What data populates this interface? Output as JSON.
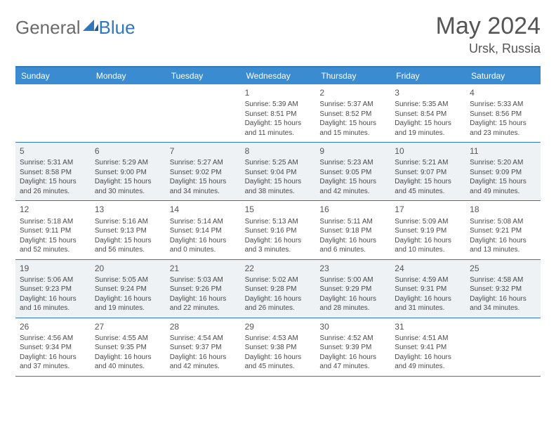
{
  "logo": {
    "part1": "General",
    "part2": "Blue"
  },
  "title": "May 2024",
  "location": "Ursk, Russia",
  "colors": {
    "header_bg": "#3a8bd0",
    "border": "#2f78bd",
    "shade": "#eef2f5",
    "text": "#4a4a4a"
  },
  "day_headers": [
    "Sunday",
    "Monday",
    "Tuesday",
    "Wednesday",
    "Thursday",
    "Friday",
    "Saturday"
  ],
  "weeks": [
    [
      {
        "blank": true
      },
      {
        "blank": true
      },
      {
        "blank": true
      },
      {
        "num": "1",
        "sunrise": "5:39 AM",
        "sunset": "8:51 PM",
        "daylight": "15 hours and 11 minutes."
      },
      {
        "num": "2",
        "sunrise": "5:37 AM",
        "sunset": "8:52 PM",
        "daylight": "15 hours and 15 minutes."
      },
      {
        "num": "3",
        "sunrise": "5:35 AM",
        "sunset": "8:54 PM",
        "daylight": "15 hours and 19 minutes."
      },
      {
        "num": "4",
        "sunrise": "5:33 AM",
        "sunset": "8:56 PM",
        "daylight": "15 hours and 23 minutes."
      }
    ],
    [
      {
        "num": "5",
        "sunrise": "5:31 AM",
        "sunset": "8:58 PM",
        "daylight": "15 hours and 26 minutes."
      },
      {
        "num": "6",
        "sunrise": "5:29 AM",
        "sunset": "9:00 PM",
        "daylight": "15 hours and 30 minutes."
      },
      {
        "num": "7",
        "sunrise": "5:27 AM",
        "sunset": "9:02 PM",
        "daylight": "15 hours and 34 minutes."
      },
      {
        "num": "8",
        "sunrise": "5:25 AM",
        "sunset": "9:04 PM",
        "daylight": "15 hours and 38 minutes."
      },
      {
        "num": "9",
        "sunrise": "5:23 AM",
        "sunset": "9:05 PM",
        "daylight": "15 hours and 42 minutes."
      },
      {
        "num": "10",
        "sunrise": "5:21 AM",
        "sunset": "9:07 PM",
        "daylight": "15 hours and 45 minutes."
      },
      {
        "num": "11",
        "sunrise": "5:20 AM",
        "sunset": "9:09 PM",
        "daylight": "15 hours and 49 minutes."
      }
    ],
    [
      {
        "num": "12",
        "sunrise": "5:18 AM",
        "sunset": "9:11 PM",
        "daylight": "15 hours and 52 minutes."
      },
      {
        "num": "13",
        "sunrise": "5:16 AM",
        "sunset": "9:13 PM",
        "daylight": "15 hours and 56 minutes."
      },
      {
        "num": "14",
        "sunrise": "5:14 AM",
        "sunset": "9:14 PM",
        "daylight": "16 hours and 0 minutes."
      },
      {
        "num": "15",
        "sunrise": "5:13 AM",
        "sunset": "9:16 PM",
        "daylight": "16 hours and 3 minutes."
      },
      {
        "num": "16",
        "sunrise": "5:11 AM",
        "sunset": "9:18 PM",
        "daylight": "16 hours and 6 minutes."
      },
      {
        "num": "17",
        "sunrise": "5:09 AM",
        "sunset": "9:19 PM",
        "daylight": "16 hours and 10 minutes."
      },
      {
        "num": "18",
        "sunrise": "5:08 AM",
        "sunset": "9:21 PM",
        "daylight": "16 hours and 13 minutes."
      }
    ],
    [
      {
        "num": "19",
        "sunrise": "5:06 AM",
        "sunset": "9:23 PM",
        "daylight": "16 hours and 16 minutes."
      },
      {
        "num": "20",
        "sunrise": "5:05 AM",
        "sunset": "9:24 PM",
        "daylight": "16 hours and 19 minutes."
      },
      {
        "num": "21",
        "sunrise": "5:03 AM",
        "sunset": "9:26 PM",
        "daylight": "16 hours and 22 minutes."
      },
      {
        "num": "22",
        "sunrise": "5:02 AM",
        "sunset": "9:28 PM",
        "daylight": "16 hours and 26 minutes."
      },
      {
        "num": "23",
        "sunrise": "5:00 AM",
        "sunset": "9:29 PM",
        "daylight": "16 hours and 28 minutes."
      },
      {
        "num": "24",
        "sunrise": "4:59 AM",
        "sunset": "9:31 PM",
        "daylight": "16 hours and 31 minutes."
      },
      {
        "num": "25",
        "sunrise": "4:58 AM",
        "sunset": "9:32 PM",
        "daylight": "16 hours and 34 minutes."
      }
    ],
    [
      {
        "num": "26",
        "sunrise": "4:56 AM",
        "sunset": "9:34 PM",
        "daylight": "16 hours and 37 minutes."
      },
      {
        "num": "27",
        "sunrise": "4:55 AM",
        "sunset": "9:35 PM",
        "daylight": "16 hours and 40 minutes."
      },
      {
        "num": "28",
        "sunrise": "4:54 AM",
        "sunset": "9:37 PM",
        "daylight": "16 hours and 42 minutes."
      },
      {
        "num": "29",
        "sunrise": "4:53 AM",
        "sunset": "9:38 PM",
        "daylight": "16 hours and 45 minutes."
      },
      {
        "num": "30",
        "sunrise": "4:52 AM",
        "sunset": "9:39 PM",
        "daylight": "16 hours and 47 minutes."
      },
      {
        "num": "31",
        "sunrise": "4:51 AM",
        "sunset": "9:41 PM",
        "daylight": "16 hours and 49 minutes."
      },
      {
        "blank": true
      }
    ]
  ]
}
